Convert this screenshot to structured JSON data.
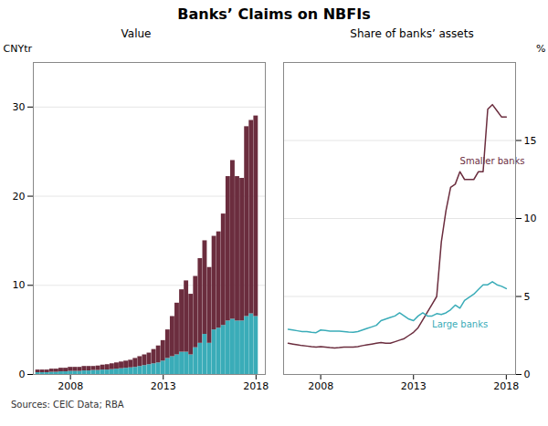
{
  "title": "Banks’ Claims on NBFIs",
  "caption": "Sources: CEIC Data; RBA",
  "chart_data": [
    {
      "type": "bar",
      "stacked": true,
      "title": "Value",
      "ylabel": "CNYtr",
      "x": [
        2006.25,
        2006.5,
        2006.75,
        2007.0,
        2007.25,
        2007.5,
        2007.75,
        2008.0,
        2008.25,
        2008.5,
        2008.75,
        2009.0,
        2009.25,
        2009.5,
        2009.75,
        2010.0,
        2010.25,
        2010.5,
        2010.75,
        2011.0,
        2011.25,
        2011.5,
        2011.75,
        2012.0,
        2012.25,
        2012.5,
        2012.75,
        2013.0,
        2013.25,
        2013.5,
        2013.75,
        2014.0,
        2014.25,
        2014.5,
        2014.75,
        2015.0,
        2015.25,
        2015.5,
        2015.75,
        2016.0,
        2016.25,
        2016.5,
        2016.75,
        2017.0,
        2017.25,
        2017.5,
        2017.75,
        2018.0
      ],
      "series": [
        {
          "color": "#3AACB8",
          "values": [
            0.2,
            0.2,
            0.2,
            0.25,
            0.25,
            0.3,
            0.3,
            0.35,
            0.35,
            0.35,
            0.4,
            0.4,
            0.45,
            0.45,
            0.5,
            0.5,
            0.55,
            0.6,
            0.65,
            0.7,
            0.75,
            0.8,
            0.9,
            1.0,
            1.1,
            1.2,
            1.3,
            1.5,
            1.8,
            2.0,
            2.2,
            2.5,
            2.5,
            2.2,
            3.0,
            3.5,
            4.5,
            3.5,
            5.0,
            5.2,
            5.5,
            6.0,
            6.2,
            6.0,
            6.0,
            6.5,
            6.8,
            6.5
          ]
        },
        {
          "color": "#6B2D3E",
          "values": [
            0.3,
            0.3,
            0.3,
            0.35,
            0.35,
            0.4,
            0.4,
            0.45,
            0.45,
            0.45,
            0.5,
            0.5,
            0.45,
            0.5,
            0.55,
            0.6,
            0.65,
            0.7,
            0.75,
            0.8,
            0.85,
            1.0,
            1.1,
            1.2,
            1.3,
            1.6,
            1.9,
            2.3,
            3.2,
            4.5,
            5.8,
            7.0,
            8.0,
            6.8,
            8.0,
            9.5,
            10.5,
            8.5,
            10.5,
            10.8,
            12.5,
            16.2,
            17.8,
            16.2,
            16.0,
            21.3,
            21.7,
            22.5
          ]
        }
      ],
      "xlim": [
        2006.0,
        2018.5
      ],
      "ylim": [
        0,
        35
      ],
      "xticks": [
        2008,
        2013,
        2018
      ],
      "yticks": [
        0,
        10,
        20,
        30
      ],
      "grid": true
    },
    {
      "type": "line",
      "title": "Share of banks’ assets",
      "ylabel": "%",
      "x": [
        2006.25,
        2006.5,
        2006.75,
        2007.0,
        2007.25,
        2007.5,
        2007.75,
        2008.0,
        2008.25,
        2008.5,
        2008.75,
        2009.0,
        2009.25,
        2009.5,
        2009.75,
        2010.0,
        2010.25,
        2010.5,
        2010.75,
        2011.0,
        2011.25,
        2011.5,
        2011.75,
        2012.0,
        2012.25,
        2012.5,
        2012.75,
        2013.0,
        2013.25,
        2013.5,
        2013.75,
        2014.0,
        2014.25,
        2014.5,
        2014.75,
        2015.0,
        2015.25,
        2015.5,
        2015.75,
        2016.0,
        2016.25,
        2016.5,
        2016.75,
        2017.0,
        2017.25,
        2017.5,
        2017.75,
        2018.0
      ],
      "series": [
        {
          "color": "#6B2D3E",
          "values": [
            2.0,
            1.95,
            1.9,
            1.85,
            1.82,
            1.78,
            1.75,
            1.78,
            1.75,
            1.72,
            1.7,
            1.72,
            1.75,
            1.75,
            1.75,
            1.78,
            1.85,
            1.9,
            1.95,
            2.0,
            2.05,
            2.0,
            2.0,
            2.1,
            2.2,
            2.3,
            2.5,
            2.7,
            3.0,
            3.5,
            4.0,
            4.5,
            5.0,
            8.5,
            10.5,
            12.0,
            12.2,
            13.0,
            12.5,
            12.5,
            12.5,
            13.0,
            13.0,
            17.0,
            17.3,
            16.9,
            16.5,
            16.5
          ]
        },
        {
          "color": "#3AACB8",
          "values": [
            2.9,
            2.85,
            2.8,
            2.75,
            2.75,
            2.7,
            2.68,
            2.85,
            2.82,
            2.78,
            2.78,
            2.78,
            2.75,
            2.72,
            2.7,
            2.75,
            2.85,
            2.95,
            3.05,
            3.15,
            3.45,
            3.55,
            3.65,
            3.75,
            3.95,
            3.75,
            3.55,
            3.45,
            3.75,
            3.95,
            3.75,
            3.75,
            3.9,
            3.85,
            3.95,
            4.15,
            4.45,
            4.25,
            4.75,
            4.95,
            5.15,
            5.45,
            5.75,
            5.75,
            5.95,
            5.75,
            5.65,
            5.5
          ]
        }
      ],
      "annotations": [
        {
          "text": "Smaller banks",
          "x": 2015.5,
          "y": 13.5,
          "color": "#6B2D3E"
        },
        {
          "text": "Large banks",
          "x": 2014.0,
          "y": 3.0,
          "color": "#3AACB8"
        }
      ],
      "xlim": [
        2006.0,
        2018.5
      ],
      "ylim": [
        0,
        20
      ],
      "xticks": [
        2008,
        2013,
        2018
      ],
      "yticks": [
        0,
        5,
        10,
        15
      ],
      "grid": true
    }
  ]
}
